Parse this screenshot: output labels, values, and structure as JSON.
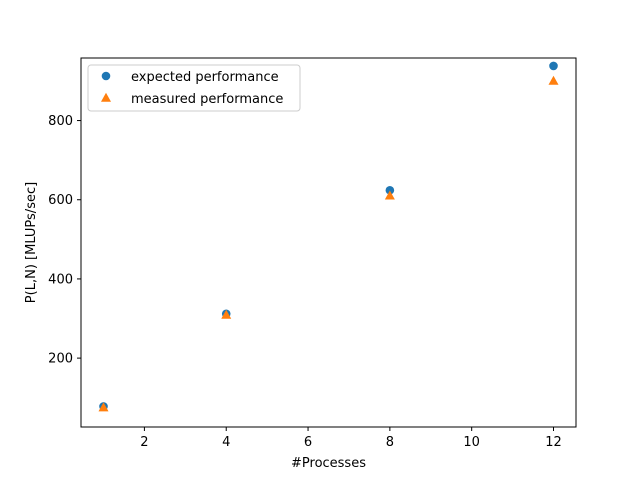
{
  "chart_data": {
    "type": "scatter",
    "title": "",
    "xlabel": "#Processes",
    "ylabel": "P(L,N) [MLUPs/sec]",
    "xlim": [
      0.45,
      12.55
    ],
    "ylim": [
      26,
      958
    ],
    "x_ticks": [
      2,
      4,
      6,
      8,
      10,
      12
    ],
    "y_ticks": [
      200,
      400,
      600,
      800
    ],
    "grid": false,
    "legend_position": "upper-left",
    "series": [
      {
        "name": "expected performance",
        "marker": "circle",
        "color": "#1f77b4",
        "points": [
          {
            "x": 1,
            "y": 78
          },
          {
            "x": 4,
            "y": 312
          },
          {
            "x": 8,
            "y": 624
          },
          {
            "x": 12,
            "y": 938
          }
        ]
      },
      {
        "name": "measured performance",
        "marker": "triangle",
        "color": "#ff7f0e",
        "points": [
          {
            "x": 1,
            "y": 75
          },
          {
            "x": 4,
            "y": 309
          },
          {
            "x": 8,
            "y": 610
          },
          {
            "x": 12,
            "y": 900
          }
        ]
      }
    ]
  }
}
